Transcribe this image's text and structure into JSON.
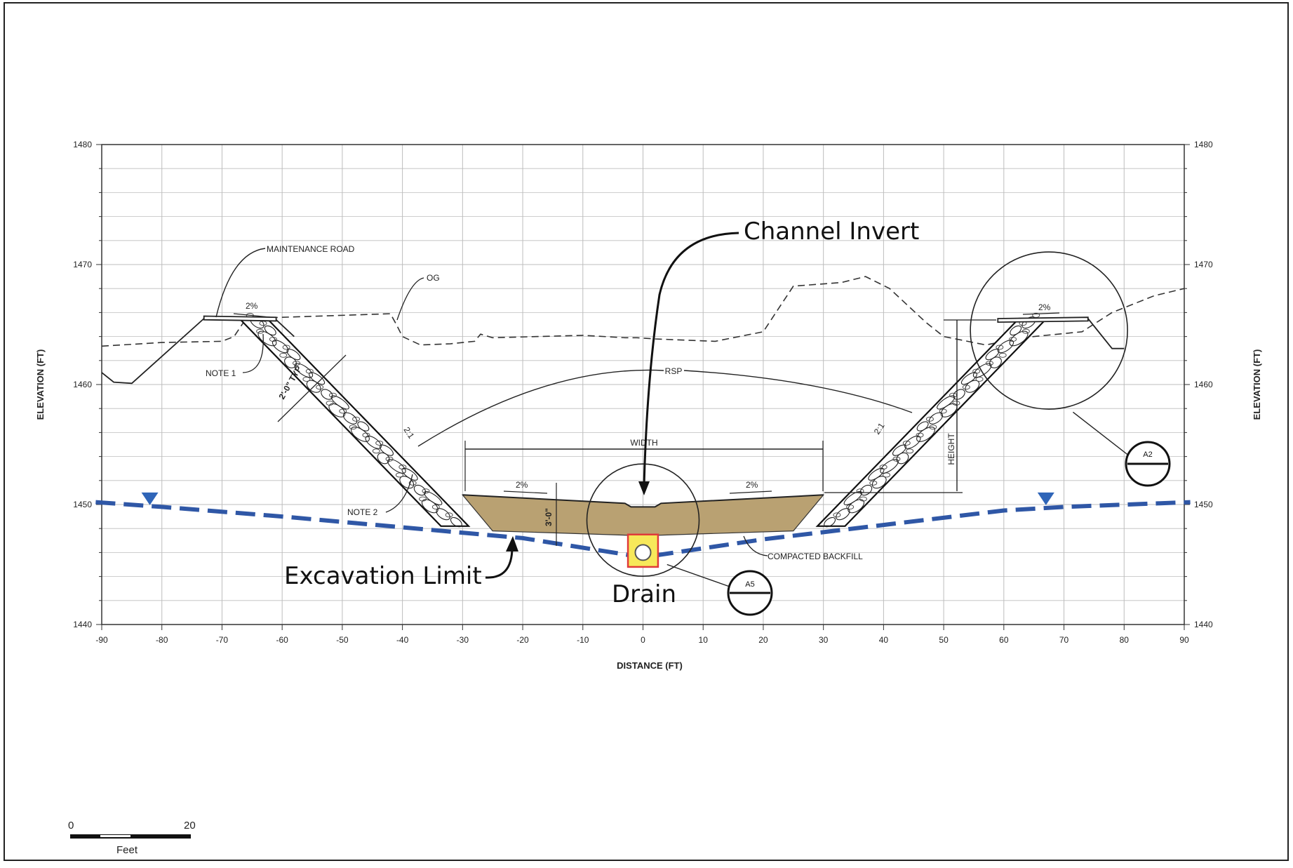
{
  "title": "",
  "axes": {
    "x_label": "DISTANCE (FT)",
    "y_label": "ELEVATION (FT)",
    "x_ticks": [
      "-90",
      "-80",
      "-70",
      "-60",
      "-50",
      "-40",
      "-30",
      "-20",
      "-10",
      "0",
      "10",
      "20",
      "30",
      "40",
      "50",
      "60",
      "70",
      "80",
      "90"
    ],
    "y_ticks": [
      "1440",
      "1450",
      "1460",
      "1470",
      "1480"
    ],
    "x_range": [
      -90,
      90
    ],
    "y_range": [
      1440,
      1480
    ],
    "grid": true
  },
  "section": {
    "og_points": [
      [
        -90,
        1461
      ],
      [
        -88,
        1460.2
      ],
      [
        -85,
        1460.1
      ],
      [
        -73,
        1465.5
      ],
      [
        -61,
        1465.4
      ],
      [
        -58,
        1464
      ]
    ],
    "og_dashed": [
      [
        -90,
        1463.2
      ],
      [
        -80,
        1463.5
      ],
      [
        -70,
        1463.6
      ],
      [
        -68,
        1464
      ],
      [
        -66,
        1465.5
      ],
      [
        -60,
        1465.6
      ],
      [
        -42,
        1465.9
      ],
      [
        -41,
        1465
      ],
      [
        -40,
        1464
      ],
      [
        -37,
        1463.3
      ],
      [
        -32,
        1463.4
      ],
      [
        -28,
        1463.6
      ],
      [
        -27,
        1464.2
      ],
      [
        -25,
        1463.9
      ],
      [
        -10,
        1464.1
      ],
      [
        -3,
        1463.9
      ],
      [
        -1,
        1463.9
      ],
      [
        2,
        1463.8
      ],
      [
        12,
        1463.6
      ],
      [
        20,
        1464.4
      ],
      [
        25,
        1468.2
      ],
      [
        33,
        1468.5
      ],
      [
        37,
        1469
      ],
      [
        41,
        1468
      ],
      [
        47,
        1465.2
      ],
      [
        50,
        1464
      ],
      [
        57,
        1463.3
      ],
      [
        63,
        1463.9
      ],
      [
        73,
        1464.4
      ],
      [
        78,
        1466
      ],
      [
        85,
        1467.4
      ],
      [
        90,
        1468
      ]
    ],
    "right_ground": [
      [
        74,
        1465.5
      ],
      [
        78,
        1463
      ],
      [
        80,
        1463
      ]
    ],
    "invert_elev": 1450.1,
    "bottom_half_width": 30,
    "backfill_bottom": 1447.4,
    "excavation": [
      [
        -91,
        1450.2
      ],
      [
        -80,
        1449.8
      ],
      [
        -60,
        1449
      ],
      [
        -40,
        1448.1
      ],
      [
        -20,
        1447.2
      ],
      [
        0,
        1445.6
      ],
      [
        20,
        1447.1
      ],
      [
        40,
        1448.3
      ],
      [
        60,
        1449.5
      ],
      [
        70,
        1449.8
      ],
      [
        91,
        1450.2
      ]
    ],
    "water_marker_x": [
      -82,
      67
    ]
  },
  "labels": {
    "maintenance_road": "MAINTENANCE ROAD",
    "og": "OG",
    "note1": "NOTE 1",
    "note2": "NOTE 2",
    "rsp": "RSP",
    "width": "WIDTH",
    "height": "HEIGHT",
    "thickness_typ": "2'-0\" TYP",
    "slope_left": "2:1",
    "slope_right": "2:1",
    "pct_road_left": "2%",
    "pct_road_right": "2%",
    "pct_bottom_left": "2%",
    "pct_bottom_right": "2%",
    "depth": "3'-0\"",
    "compacted_backfill": "COMPACTED BACKFILL",
    "detail_a2": "A2",
    "detail_a5": "A5"
  },
  "callouts": {
    "channel_invert": "Channel Invert",
    "excavation_limit": "Excavation Limit",
    "drain": "Drain"
  },
  "scale_bar": {
    "start": "0",
    "end": "20",
    "unit": "Feet"
  },
  "colors": {
    "excavation": "#2f57a6",
    "backfill": "#b9a172",
    "water_marker": "#2f65b8",
    "drain_fill": "#f7e85a",
    "drain_border": "#e03a3a",
    "grid": "#bdbdbd"
  }
}
